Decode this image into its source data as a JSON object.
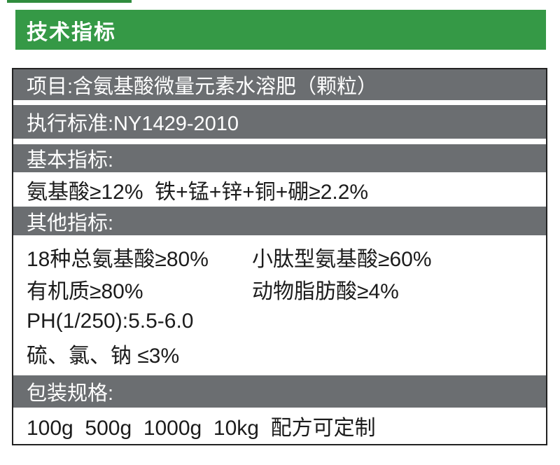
{
  "colors": {
    "green_bar": "#359946",
    "green_strip": "#2f8c3d",
    "gray_row": "#6b6e71",
    "border": "#222222",
    "text_dark": "#1c1c1c",
    "text_light": "#ffffff"
  },
  "header": {
    "title": "技术指标"
  },
  "table": {
    "project_row": "项目:含氨基酸微量元素水溶肥（颗粒）",
    "standard_row": "执行标准:NY1429-2010",
    "basic_header": "基本指标:",
    "basic_values": "氨基酸≥12%  铁+锰+锌+铜+硼≥2.2%",
    "other_header": "其他指标:",
    "other_values": {
      "amino_total": "18种总氨基酸≥80%",
      "small_peptide": "小肽型氨基酸≥60%",
      "organic_matter": "有机质≥80%",
      "animal_fat_acid": "动物脂肪酸≥4%",
      "ph": "PH(1/250):5.5-6.0",
      "sulfur_chlorine_sodium": "硫、氯、钠 ≤3%"
    },
    "packaging_header": "包装规格:",
    "packaging_values": "100g  500g  1000g  10kg  配方可定制"
  }
}
